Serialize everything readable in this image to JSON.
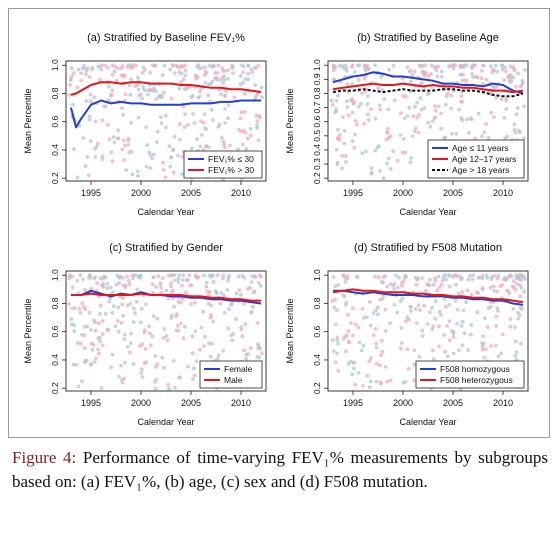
{
  "caption": {
    "label": "Figure 4:",
    "text": " Performance of time-varying FEV₁% measurements by subgroups based on: (a) FEV₁%, (b) age, (c) sex and (d) F508 mutation."
  },
  "colors": {
    "blue": "#1f3fd6",
    "red": "#e8141a",
    "black": "#111111",
    "blue_dots": "#a9c8dc",
    "red_dots": "#f5aab8"
  },
  "chart_data": [
    {
      "type": "line",
      "title": "(a) Stratified by Baseline FEV₁%",
      "xlabel": "Calendar Year",
      "ylabel": "Mean Percentile",
      "xlim": [
        1992.5,
        2012.5
      ],
      "ylim": [
        0.18,
        1.03
      ],
      "xticks": [
        "1995",
        "2000",
        "2005",
        "2010"
      ],
      "yticks": [
        "0.2",
        "0.4",
        "0.6",
        "0.8",
        "1.0"
      ],
      "legend_position": "bottom-right",
      "background": "scatter",
      "x": [
        1993,
        1993.5,
        1994,
        1995,
        1996,
        1997,
        1998,
        1999,
        2000,
        2001,
        2002,
        2003,
        2004,
        2005,
        2006,
        2007,
        2008,
        2009,
        2010,
        2011,
        2012
      ],
      "series": [
        {
          "name": "FEV₁% ≤ 30",
          "color": "blue",
          "values": [
            0.7,
            0.56,
            0.62,
            0.72,
            0.75,
            0.73,
            0.74,
            0.73,
            0.73,
            0.72,
            0.72,
            0.72,
            0.72,
            0.73,
            0.73,
            0.73,
            0.74,
            0.74,
            0.75,
            0.75,
            0.75
          ]
        },
        {
          "name": "FEV₁% > 30",
          "color": "red",
          "values": [
            0.79,
            0.8,
            0.82,
            0.86,
            0.88,
            0.88,
            0.87,
            0.88,
            0.88,
            0.87,
            0.87,
            0.87,
            0.86,
            0.86,
            0.85,
            0.84,
            0.84,
            0.83,
            0.83,
            0.82,
            0.81
          ]
        }
      ]
    },
    {
      "type": "line",
      "title": "(b) Stratified by Baseline Age",
      "xlabel": "Calendar Year",
      "ylabel": "Mean Percentile",
      "xlim": [
        1992.5,
        2012.5
      ],
      "ylim": [
        0.18,
        1.03
      ],
      "xticks": [
        "1995",
        "2000",
        "2005",
        "2010"
      ],
      "yticks": [
        "0.2",
        "0.3",
        "0.4",
        "0.5",
        "0.6",
        "0.7",
        "0.8",
        "0.9",
        "1.0"
      ],
      "legend_position": "bottom-right",
      "background": "scatter",
      "x": [
        1993,
        1994,
        1995,
        1996,
        1997,
        1998,
        1999,
        2000,
        2001,
        2002,
        2003,
        2004,
        2005,
        2006,
        2007,
        2008,
        2009,
        2010,
        2011,
        2012
      ],
      "series": [
        {
          "name": "Age ≤ 11 years",
          "color": "blue",
          "values": [
            0.88,
            0.9,
            0.92,
            0.93,
            0.95,
            0.94,
            0.92,
            0.92,
            0.91,
            0.9,
            0.89,
            0.87,
            0.87,
            0.86,
            0.86,
            0.85,
            0.87,
            0.86,
            0.82,
            0.8
          ]
        },
        {
          "name": "Age 12–17 years",
          "color": "red",
          "values": [
            0.83,
            0.84,
            0.85,
            0.86,
            0.87,
            0.86,
            0.86,
            0.87,
            0.86,
            0.85,
            0.86,
            0.85,
            0.85,
            0.84,
            0.84,
            0.83,
            0.82,
            0.82,
            0.81,
            0.82
          ]
        },
        {
          "name": "Age > 18 years",
          "color": "black",
          "dashed": true,
          "values": [
            0.81,
            0.82,
            0.82,
            0.83,
            0.82,
            0.81,
            0.82,
            0.83,
            0.82,
            0.82,
            0.82,
            0.83,
            0.83,
            0.82,
            0.82,
            0.81,
            0.79,
            0.78,
            0.78,
            0.8
          ]
        }
      ]
    },
    {
      "type": "line",
      "title": "(c) Stratified by Gender",
      "xlabel": "Calendar Year",
      "ylabel": "Mean Percentile",
      "xlim": [
        1992.5,
        2012.5
      ],
      "ylim": [
        0.18,
        1.03
      ],
      "xticks": [
        "1995",
        "2000",
        "2005",
        "2010"
      ],
      "yticks": [
        "0.2",
        "0.4",
        "0.6",
        "0.8",
        "1.0"
      ],
      "legend_position": "bottom-right",
      "background": "scatter",
      "x": [
        1993,
        1994,
        1995,
        1996,
        1997,
        1998,
        1999,
        2000,
        2001,
        2002,
        2003,
        2004,
        2005,
        2006,
        2007,
        2008,
        2009,
        2010,
        2011,
        2012
      ],
      "series": [
        {
          "name": "Female",
          "color": "blue",
          "values": [
            0.86,
            0.86,
            0.89,
            0.87,
            0.85,
            0.87,
            0.86,
            0.88,
            0.86,
            0.86,
            0.85,
            0.85,
            0.84,
            0.84,
            0.83,
            0.83,
            0.82,
            0.82,
            0.81,
            0.8
          ]
        },
        {
          "name": "Male",
          "color": "red",
          "values": [
            0.86,
            0.86,
            0.87,
            0.86,
            0.86,
            0.86,
            0.86,
            0.87,
            0.86,
            0.86,
            0.86,
            0.86,
            0.85,
            0.85,
            0.84,
            0.84,
            0.83,
            0.83,
            0.82,
            0.82
          ]
        }
      ]
    },
    {
      "type": "line",
      "title": "(d) Stratified by F508 Mutation",
      "xlabel": "Calendar Year",
      "ylabel": "Mean Percentile",
      "xlim": [
        1992.5,
        2012.5
      ],
      "ylim": [
        0.18,
        1.03
      ],
      "xticks": [
        "1995",
        "2000",
        "2005",
        "2010"
      ],
      "yticks": [
        "0.2",
        "0.4",
        "0.6",
        "0.8",
        "1.0"
      ],
      "legend_position": "bottom-right",
      "background": "scatter",
      "x": [
        1993,
        1994,
        1995,
        1996,
        1997,
        1998,
        1999,
        2000,
        2001,
        2002,
        2003,
        2004,
        2005,
        2006,
        2007,
        2008,
        2009,
        2010,
        2011,
        2012
      ],
      "series": [
        {
          "name": "F508 homozygous",
          "color": "blue",
          "values": [
            0.89,
            0.89,
            0.88,
            0.87,
            0.88,
            0.87,
            0.86,
            0.86,
            0.86,
            0.85,
            0.85,
            0.85,
            0.84,
            0.84,
            0.83,
            0.83,
            0.82,
            0.82,
            0.8,
            0.79
          ]
        },
        {
          "name": "F508 heterozygous",
          "color": "red",
          "values": [
            0.88,
            0.89,
            0.9,
            0.89,
            0.89,
            0.88,
            0.88,
            0.88,
            0.87,
            0.87,
            0.86,
            0.86,
            0.85,
            0.85,
            0.84,
            0.84,
            0.83,
            0.83,
            0.82,
            0.81
          ]
        }
      ]
    }
  ]
}
